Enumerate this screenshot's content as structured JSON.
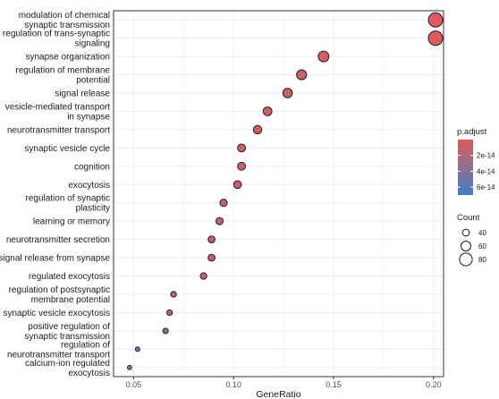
{
  "chart_data": {
    "type": "scatter",
    "subtype": "dot-plot",
    "xlabel": "GeneRatio",
    "ylabel": "",
    "xlim": [
      0.04,
      0.205
    ],
    "x_ticks": [
      0.05,
      0.1,
      0.15,
      0.2
    ],
    "x_tick_labels": [
      "0.05",
      "0.10",
      "0.15",
      "0.20"
    ],
    "grid": true,
    "points": [
      {
        "term": [
          "modulation of chemical",
          "synaptic transmission"
        ],
        "gene_ratio": 0.201,
        "count": 91,
        "p_adjust": 8e-16
      },
      {
        "term": [
          "regulation of trans-synaptic",
          "signaling"
        ],
        "gene_ratio": 0.201,
        "count": 91,
        "p_adjust": 8e-16
      },
      {
        "term": [
          "synapse organization"
        ],
        "gene_ratio": 0.145,
        "count": 66,
        "p_adjust": 5e-15
      },
      {
        "term": [
          "regulation of membrane",
          "potential"
        ],
        "gene_ratio": 0.134,
        "count": 61,
        "p_adjust": 7e-15
      },
      {
        "term": [
          "signal release"
        ],
        "gene_ratio": 0.127,
        "count": 58,
        "p_adjust": 8e-15
      },
      {
        "term": [
          "vesicle-mediated transport",
          "in synapse"
        ],
        "gene_ratio": 0.117,
        "count": 53,
        "p_adjust": 8e-15
      },
      {
        "term": [
          "neurotransmitter transport"
        ],
        "gene_ratio": 0.112,
        "count": 51,
        "p_adjust": 9e-15
      },
      {
        "term": [
          "synaptic vesicle cycle"
        ],
        "gene_ratio": 0.104,
        "count": 47,
        "p_adjust": 9e-15
      },
      {
        "term": [
          "cognition"
        ],
        "gene_ratio": 0.104,
        "count": 47,
        "p_adjust": 9e-15
      },
      {
        "term": [
          "exocytosis"
        ],
        "gene_ratio": 0.102,
        "count": 46,
        "p_adjust": 1.1e-14
      },
      {
        "term": [
          "regulation of synaptic",
          "plasticity"
        ],
        "gene_ratio": 0.095,
        "count": 43,
        "p_adjust": 1.2e-14
      },
      {
        "term": [
          "learning or memory"
        ],
        "gene_ratio": 0.093,
        "count": 42,
        "p_adjust": 1.2e-14
      },
      {
        "term": [
          "neurotransmitter secretion"
        ],
        "gene_ratio": 0.089,
        "count": 40,
        "p_adjust": 1.3e-14
      },
      {
        "term": [
          "signal release from synapse"
        ],
        "gene_ratio": 0.089,
        "count": 40,
        "p_adjust": 1.3e-14
      },
      {
        "term": [
          "regulated exocytosis"
        ],
        "gene_ratio": 0.085,
        "count": 38,
        "p_adjust": 1.4e-14
      },
      {
        "term": [
          "regulation of postsynaptic",
          "membrane potential"
        ],
        "gene_ratio": 0.07,
        "count": 32,
        "p_adjust": 1.6e-14
      },
      {
        "term": [
          "synaptic vesicle exocytosis"
        ],
        "gene_ratio": 0.068,
        "count": 31,
        "p_adjust": 1.8e-14
      },
      {
        "term": [
          "positive regulation of",
          "synaptic transmission"
        ],
        "gene_ratio": 0.066,
        "count": 30,
        "p_adjust": 4.3e-14
      },
      {
        "term": [
          "regulation of",
          "neurotransmitter transport"
        ],
        "gene_ratio": 0.052,
        "count": 24,
        "p_adjust": 5.5e-14
      },
      {
        "term": [
          "calcium-ion regulated",
          "exocytosis"
        ],
        "gene_ratio": 0.048,
        "count": 22,
        "p_adjust": 1.5e-14
      }
    ],
    "legend_color": {
      "title": "p.adjust",
      "range": [
        0,
        7e-14
      ],
      "ticks": [
        2e-14,
        4e-14,
        6e-14
      ],
      "tick_labels": [
        "2e-14",
        "4e-14",
        "6e-14"
      ],
      "low_color": "#e05a5a",
      "high_color": "#3f7fc7"
    },
    "legend_size": {
      "title": "Count",
      "ticks": [
        40,
        60,
        80
      ],
      "tick_labels": [
        "40",
        "60",
        "80"
      ]
    },
    "colors": {
      "panel_bg": "#ffffff",
      "grid": "#ebebeb",
      "panel_border": "#333333",
      "point_stroke": "#1f1f1f"
    }
  }
}
